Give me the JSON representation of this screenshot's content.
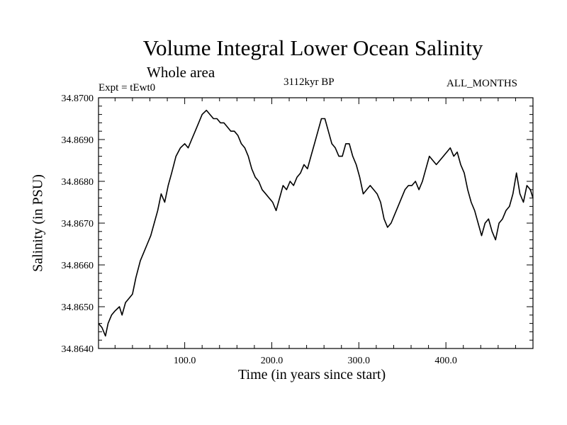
{
  "chart_data": {
    "type": "line",
    "title": "Volume Integral Lower Ocean Salinity",
    "subtitle": "Whole area",
    "left_label": "Expt = tEwt0",
    "center_label": "3112kyr BP",
    "right_label": "ALL_MONTHS",
    "xlabel": "Time (in years since start)",
    "ylabel": "Salinity (in PSU)",
    "xlim": [
      1,
      500
    ],
    "ylim": [
      34.864,
      34.87
    ],
    "xticks": [
      100,
      200,
      300,
      400
    ],
    "xtick_labels": [
      "100.0",
      "200.0",
      "300.0",
      "400.0"
    ],
    "yticks": [
      34.864,
      34.865,
      34.866,
      34.867,
      34.868,
      34.869,
      34.87
    ],
    "ytick_labels": [
      "34.8640",
      "34.8650",
      "34.8660",
      "34.8670",
      "34.8680",
      "34.8690",
      "34.8700"
    ],
    "line_color": "#000000",
    "series": [
      {
        "name": "Salinity",
        "x": [
          1,
          5,
          9,
          12,
          16,
          20,
          25,
          28,
          32,
          36,
          40,
          44,
          49,
          53,
          57,
          61,
          65,
          69,
          73,
          77,
          81,
          85,
          90,
          95,
          100,
          104,
          108,
          112,
          116,
          120,
          125,
          129,
          133,
          137,
          141,
          145,
          149,
          153,
          157,
          161,
          165,
          169,
          173,
          177,
          181,
          185,
          189,
          193,
          197,
          201,
          205,
          209,
          213,
          217,
          221,
          225,
          229,
          233,
          237,
          241,
          245,
          249,
          253,
          257,
          261,
          265,
          269,
          273,
          277,
          281,
          285,
          289,
          293,
          297,
          301,
          305,
          309,
          313,
          317,
          321,
          325,
          329,
          333,
          337,
          341,
          345,
          349,
          353,
          357,
          361,
          365,
          369,
          373,
          377,
          381,
          385,
          389,
          393,
          397,
          401,
          405,
          409,
          413,
          417,
          421,
          425,
          429,
          433,
          437,
          441,
          445,
          449,
          453,
          457,
          461,
          465,
          469,
          473,
          477,
          481,
          485,
          489,
          493,
          497,
          500
        ],
        "values": [
          34.8646,
          34.8645,
          34.8643,
          34.8646,
          34.8648,
          34.8649,
          34.865,
          34.8648,
          34.8651,
          34.8652,
          34.8653,
          34.8657,
          34.8661,
          34.8663,
          34.8665,
          34.8667,
          34.867,
          34.8673,
          34.8677,
          34.8675,
          34.8679,
          34.8682,
          34.8686,
          34.8688,
          34.8689,
          34.8688,
          34.869,
          34.8692,
          34.8694,
          34.8696,
          34.8697,
          34.8696,
          34.8695,
          34.8695,
          34.8694,
          34.8694,
          34.8693,
          34.8692,
          34.8692,
          34.8691,
          34.8689,
          34.8688,
          34.8686,
          34.8683,
          34.8681,
          34.868,
          34.8678,
          34.8677,
          34.8676,
          34.8675,
          34.8673,
          34.8676,
          34.8679,
          34.8678,
          34.868,
          34.8679,
          34.8681,
          34.8682,
          34.8684,
          34.8683,
          34.8686,
          34.8689,
          34.8692,
          34.8695,
          34.8695,
          34.8692,
          34.8689,
          34.8688,
          34.8686,
          34.8686,
          34.8689,
          34.8689,
          34.8686,
          34.8684,
          34.8681,
          34.8677,
          34.8678,
          34.8679,
          34.8678,
          34.8677,
          34.8675,
          34.8671,
          34.8669,
          34.867,
          34.8672,
          34.8674,
          34.8676,
          34.8678,
          34.8679,
          34.8679,
          34.868,
          34.8678,
          34.868,
          34.8683,
          34.8686,
          34.8685,
          34.8684,
          34.8685,
          34.8686,
          34.8687,
          34.8688,
          34.8686,
          34.8687,
          34.8684,
          34.8682,
          34.8678,
          34.8675,
          34.8673,
          34.867,
          34.8667,
          34.867,
          34.8671,
          34.8668,
          34.8666,
          34.867,
          34.8671,
          34.8673,
          34.8674,
          34.8677,
          34.8682,
          34.8677,
          34.8675,
          34.8679,
          34.8678,
          34.8676
        ]
      }
    ]
  }
}
